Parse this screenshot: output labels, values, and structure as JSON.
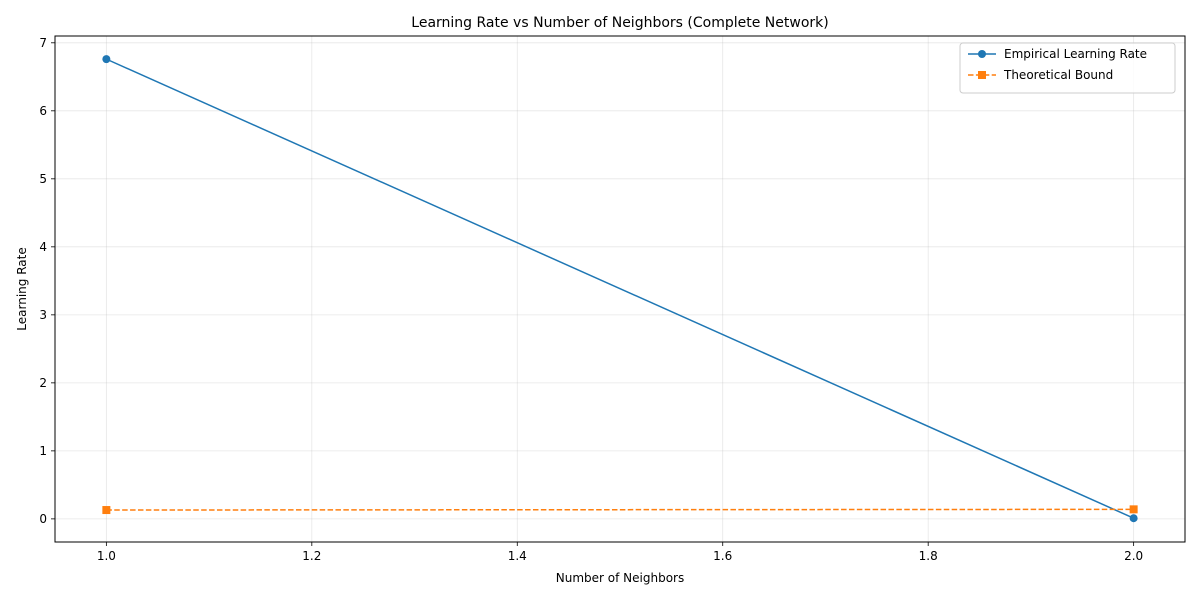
{
  "chart_data": {
    "type": "line",
    "title": "Learning Rate vs Number of Neighbors (Complete Network)",
    "xlabel": "Number of Neighbors",
    "ylabel": "Learning Rate",
    "xlim": [
      0.95,
      2.05
    ],
    "ylim": [
      -0.34,
      7.1
    ],
    "x_ticks": [
      1.0,
      1.2,
      1.4,
      1.6,
      1.8,
      2.0
    ],
    "x_tick_labels": [
      "1.0",
      "1.2",
      "1.4",
      "1.6",
      "1.8",
      "2.0"
    ],
    "y_ticks": [
      0,
      1,
      2,
      3,
      4,
      5,
      6,
      7
    ],
    "y_tick_labels": [
      "0",
      "1",
      "2",
      "3",
      "4",
      "5",
      "6",
      "7"
    ],
    "grid": true,
    "legend_position": "top-right",
    "series": [
      {
        "name": "Empirical Learning Rate",
        "x": [
          1.0,
          2.0
        ],
        "y": [
          6.76,
          0.01
        ],
        "color": "#1f77b4",
        "line_style": "solid",
        "marker": "circle"
      },
      {
        "name": "Theoretical Bound",
        "x": [
          1.0,
          2.0
        ],
        "y": [
          0.13,
          0.14
        ],
        "color": "#ff7f0e",
        "line_style": "dashed",
        "marker": "square"
      }
    ]
  }
}
